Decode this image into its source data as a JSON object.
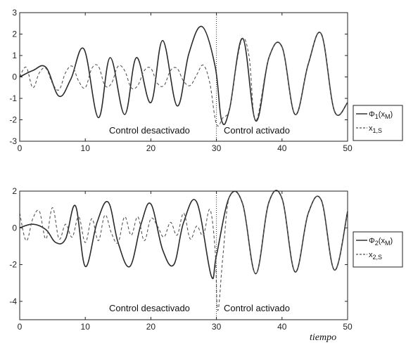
{
  "chart_data": [
    {
      "type": "line",
      "id": "top",
      "xlim": [
        0,
        50
      ],
      "ylim": [
        -3,
        3
      ],
      "xticks": [
        0,
        10,
        20,
        30,
        40,
        50
      ],
      "yticks": [
        -3,
        -2,
        -1,
        0,
        1,
        2,
        3
      ],
      "switch_x": 30,
      "annotations": [
        "Control desactivado",
        "Control activado"
      ],
      "legend": {
        "position": "right",
        "entries": [
          {
            "main": "Φ",
            "sub": "1",
            "tail": "(x",
            "sub2": "M",
            "end": ")",
            "style": "solid"
          },
          {
            "main": "x",
            "sub": "1,S",
            "tail": "",
            "sub2": "",
            "end": "",
            "style": "dashed"
          }
        ]
      },
      "series": [
        {
          "style": "solid",
          "x": [
            0,
            2,
            4,
            6,
            7.8,
            9.8,
            12,
            13.8,
            16,
            17.8,
            20,
            21.8,
            24,
            25.8,
            27.8,
            29.8,
            30.8,
            32,
            34,
            36,
            38,
            40,
            42,
            44,
            46,
            48,
            50
          ],
          "y": [
            0,
            0.3,
            0.45,
            -0.9,
            -0.1,
            1.3,
            -1.9,
            0.9,
            -1.75,
            0.9,
            -1.2,
            1.7,
            -1.35,
            1.1,
            2.35,
            0.5,
            -2.05,
            -1.5,
            1.8,
            -2.05,
            0.9,
            1.4,
            -1.75,
            0.6,
            2.0,
            -1.6,
            -1.2
          ]
        },
        {
          "style": "dashed",
          "x": [
            0,
            1,
            2,
            3,
            4,
            5,
            6,
            7,
            8,
            9,
            10,
            11,
            12,
            13,
            14,
            15,
            16,
            17,
            18,
            19,
            20,
            21,
            22,
            23,
            24,
            25,
            26,
            27,
            28,
            29,
            30,
            31,
            32,
            33,
            34,
            35,
            36,
            38,
            40,
            42,
            44,
            46,
            48,
            50
          ],
          "y": [
            0,
            0.45,
            -0.5,
            0.2,
            0.4,
            -0.3,
            -0.6,
            0.2,
            0.5,
            -0.2,
            -0.5,
            0.4,
            0.5,
            -0.4,
            -0.3,
            0.5,
            0.3,
            -0.5,
            -0.4,
            0.3,
            0.4,
            -0.3,
            -0.4,
            0.3,
            0.4,
            -0.2,
            -0.4,
            0.1,
            0.55,
            -0.3,
            -2.2,
            -1.9,
            -1.5,
            0.5,
            1.8,
            0.9,
            -2.05,
            0.9,
            1.4,
            -1.75,
            0.6,
            2.0,
            -1.6,
            -1.2
          ]
        }
      ]
    },
    {
      "type": "line",
      "id": "bottom",
      "xlim": [
        0,
        50
      ],
      "ylim": [
        -5,
        2
      ],
      "xticks": [
        0,
        10,
        20,
        30,
        40,
        50
      ],
      "yticks": [
        -4,
        -2,
        0,
        2
      ],
      "switch_x": 30,
      "annotations": [
        "Control desactivado",
        "Control activado"
      ],
      "legend": {
        "position": "right",
        "entries": [
          {
            "main": "Φ",
            "sub": "2",
            "tail": "(x",
            "sub2": "M",
            "end": ")",
            "style": "solid"
          },
          {
            "main": "x",
            "sub": "2,S",
            "tail": "",
            "sub2": "",
            "end": "",
            "style": "dashed"
          }
        ]
      },
      "series": [
        {
          "style": "solid",
          "x": [
            0,
            2,
            4,
            5.5,
            7,
            8.5,
            10,
            11.8,
            13.5,
            15,
            16.8,
            18.5,
            20,
            21.8,
            23.5,
            25,
            27,
            29.2,
            30,
            32,
            34,
            36,
            38,
            40,
            42,
            44,
            46,
            48,
            50
          ],
          "y": [
            0,
            0.2,
            -0.1,
            -0.8,
            -0.6,
            1.2,
            -2.1,
            0.3,
            1.4,
            -0.8,
            -2.1,
            0.2,
            1.3,
            -1.2,
            -2.0,
            0.3,
            1.4,
            -2.6,
            -1.5,
            1.7,
            1.3,
            -2.5,
            1.4,
            1.6,
            -2.4,
            0.8,
            1.5,
            -2.3,
            0.9
          ]
        },
        {
          "style": "dashed",
          "x": [
            0,
            1,
            2,
            3,
            4,
            5,
            6,
            7,
            8,
            9,
            10,
            11,
            12,
            13,
            14,
            15,
            16,
            17,
            18,
            19,
            20,
            21,
            22,
            23,
            24,
            25,
            26,
            27,
            28,
            29,
            29.8,
            30.2,
            31,
            32,
            34,
            36,
            38,
            40,
            42,
            44,
            46,
            48,
            50
          ],
          "y": [
            0.8,
            -0.7,
            0.5,
            0.9,
            -0.6,
            1.1,
            -0.6,
            0.2,
            -0.5,
            0.6,
            -0.8,
            0.5,
            -0.7,
            0.7,
            -0.3,
            -0.8,
            0.6,
            -0.4,
            0.6,
            -0.7,
            0.5,
            0.1,
            -0.5,
            0.3,
            -0.4,
            0.8,
            -0.6,
            0.1,
            -0.4,
            1.0,
            -1.2,
            -4.5,
            -1.5,
            1.7,
            1.3,
            -2.5,
            1.4,
            1.6,
            -2.4,
            0.8,
            1.5,
            -2.3,
            0.9
          ]
        }
      ]
    }
  ],
  "xlabel": "tiempo"
}
